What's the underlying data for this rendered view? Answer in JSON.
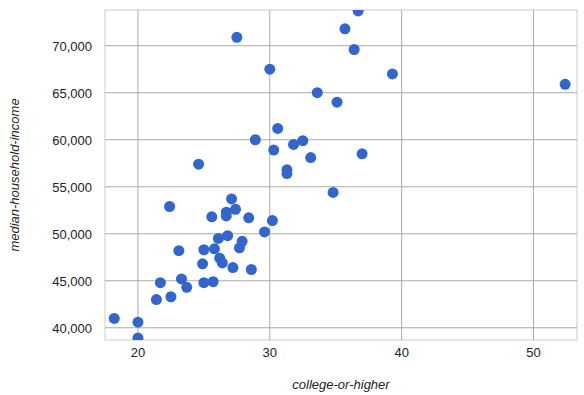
{
  "chart_data": {
    "type": "scatter",
    "x_label": "college-or-higher",
    "y_label": "median-household-income",
    "color": "#3366cc",
    "marker": "circle",
    "grid": true,
    "xlim": [
      17.5,
      53.3
    ],
    "ylim": [
      38700,
      73800
    ],
    "xticks": [
      20,
      30,
      40,
      50
    ],
    "yticks": [
      {
        "value": 40000,
        "label": "40,000"
      },
      {
        "value": 45000,
        "label": "45,000"
      },
      {
        "value": 50000,
        "label": "50,000"
      },
      {
        "value": 55000,
        "label": "55,000"
      },
      {
        "value": 60000,
        "label": "60,000"
      },
      {
        "value": 65000,
        "label": "65,000"
      },
      {
        "value": 70000,
        "label": "70,000"
      }
    ],
    "x": [
      36.7,
      35.7,
      27.5,
      36.4,
      30.0,
      39.3,
      52.4,
      33.6,
      35.1,
      30.6,
      32.5,
      31.8,
      28.9,
      30.3,
      33.1,
      37.0,
      24.6,
      31.3,
      31.3,
      34.8,
      22.4,
      27.1,
      27.4,
      26.7,
      26.7,
      25.6,
      28.4,
      30.2,
      29.6,
      26.8,
      26.1,
      27.9,
      25.8,
      27.7,
      25.0,
      23.1,
      26.2,
      26.4,
      24.9,
      27.2,
      28.6,
      23.3,
      21.7,
      23.7,
      25.0,
      25.7,
      22.5,
      21.4,
      18.2,
      20.0,
      20.0
    ],
    "values": [
      73700,
      71800,
      70900,
      69600,
      67500,
      67000,
      65900,
      65000,
      64000,
      61200,
      59900,
      59500,
      60000,
      58900,
      58100,
      58500,
      57400,
      56800,
      56400,
      54400,
      52900,
      53700,
      52600,
      52300,
      51900,
      51800,
      51700,
      51400,
      50200,
      49800,
      49500,
      49200,
      48400,
      48500,
      48300,
      48200,
      47400,
      46900,
      46800,
      46400,
      46200,
      45200,
      44800,
      44300,
      44800,
      44900,
      43300,
      43000,
      41000,
      40600,
      38900
    ]
  }
}
